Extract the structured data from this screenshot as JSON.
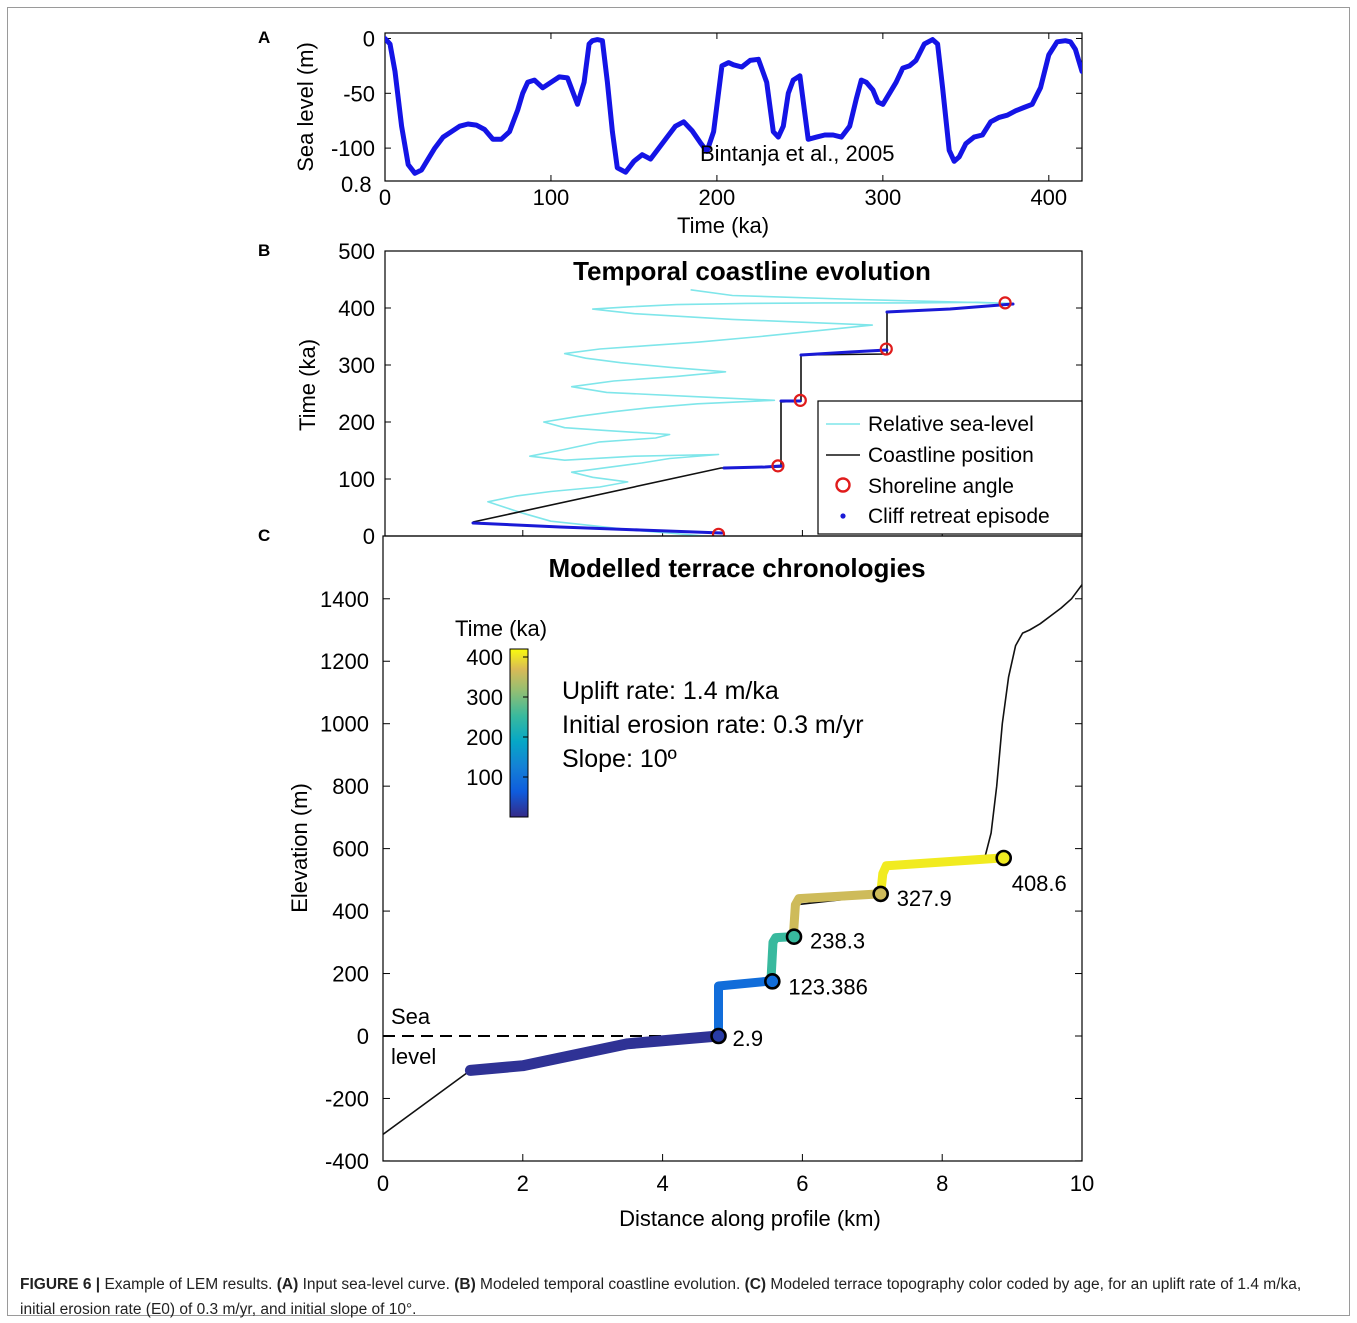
{
  "chart_data": [
    {
      "panel": "A",
      "type": "line",
      "xlabel": "Time (ka)",
      "ylabel": "Sea level (m)",
      "xlim": [
        0,
        420
      ],
      "ylim": [
        -130,
        5
      ],
      "xticks": [
        "0",
        "100",
        "200",
        "300",
        "400"
      ],
      "yticks": [
        "0",
        "-50",
        "-100"
      ],
      "corner_label": "0.8",
      "annotation": "Bintanja et al., 2005",
      "line_color": "#1414e6",
      "x": [
        0,
        3,
        6,
        10,
        14,
        18,
        22,
        26,
        30,
        35,
        40,
        45,
        50,
        55,
        60,
        65,
        70,
        75,
        80,
        83,
        86,
        90,
        95,
        100,
        105,
        110,
        113,
        116,
        120,
        123,
        125,
        128,
        131,
        134,
        137,
        140,
        145,
        150,
        155,
        160,
        165,
        170,
        175,
        180,
        185,
        190,
        194,
        198,
        203,
        207,
        210,
        215,
        220,
        225,
        230,
        234,
        237,
        240,
        243,
        246,
        250,
        255,
        260,
        265,
        270,
        275,
        280,
        284,
        287,
        290,
        294,
        297,
        300,
        304,
        308,
        312,
        316,
        320,
        325,
        330,
        333,
        336,
        340,
        343,
        346,
        350,
        355,
        360,
        365,
        370,
        375,
        380,
        385,
        390,
        395,
        400,
        405,
        410,
        413,
        416,
        420
      ],
      "y": [
        0,
        -5,
        -30,
        -80,
        -115,
        -123,
        -120,
        -110,
        -100,
        -90,
        -85,
        -80,
        -78,
        -79,
        -83,
        -92,
        -92,
        -85,
        -65,
        -50,
        -40,
        -38,
        -45,
        -40,
        -35,
        -36,
        -48,
        -60,
        -40,
        -5,
        -2,
        -1,
        -2,
        -40,
        -85,
        -118,
        -122,
        -112,
        -106,
        -110,
        -100,
        -90,
        -80,
        -76,
        -84,
        -95,
        -103,
        -85,
        -25,
        -22,
        -24,
        -26,
        -20,
        -19,
        -40,
        -85,
        -90,
        -80,
        -50,
        -38,
        -34,
        -92,
        -90,
        -88,
        -88,
        -90,
        -80,
        -55,
        -38,
        -40,
        -47,
        -58,
        -60,
        -50,
        -40,
        -27,
        -25,
        -20,
        -5,
        -1,
        -5,
        -45,
        -102,
        -112,
        -108,
        -96,
        -90,
        -88,
        -76,
        -72,
        -70,
        -66,
        -63,
        -60,
        -45,
        -15,
        -3,
        -2,
        -3,
        -10,
        -30
      ]
    },
    {
      "panel": "B",
      "type": "line",
      "title": "Temporal coastline evolution",
      "ylabel": "Time (ka)",
      "ylim": [
        0,
        500
      ],
      "yticks": [
        "0",
        "100",
        "200",
        "300",
        "400",
        "500"
      ],
      "legend": [
        "Relative sea-level",
        "Coastline position",
        "Shoreline angle",
        "Cliff retreat episode"
      ],
      "legend_position": "bottom-right",
      "colors": {
        "sea_level": "#7fe6ea",
        "coastline": "#111111",
        "shoreline": "#e01c1c",
        "cliff": "#1a1ad6"
      },
      "relative_sea_level": {
        "x": [
          4.6,
          4.1,
          3.6,
          3.0,
          2.4,
          2.0,
          1.5,
          1.9,
          2.4,
          3.1,
          3.5,
          3.0,
          2.7,
          3.2,
          3.7,
          4.1,
          4.8,
          3.6,
          2.6,
          2.1,
          2.6,
          3.1,
          3.9,
          4.1,
          3.2,
          2.6,
          2.3,
          2.8,
          3.3,
          3.8,
          4.5,
          5.6,
          4.4,
          3.2,
          2.7,
          3.3,
          4.2,
          4.9,
          4.1,
          3.4,
          2.9,
          2.6,
          3.1,
          3.8,
          4.5,
          5.4,
          6.2,
          7.0,
          5.0,
          3.6,
          3.0,
          3.5,
          4.2,
          5.2,
          6.3,
          7.5,
          8.5,
          9.0,
          6.8,
          5.0,
          4.4
        ],
        "y": [
          0,
          5,
          10,
          18,
          26,
          40,
          60,
          70,
          78,
          86,
          95,
          103,
          112,
          120,
          128,
          136,
          143,
          140,
          133,
          140,
          152,
          165,
          172,
          178,
          185,
          190,
          200,
          210,
          218,
          225,
          232,
          238,
          245,
          252,
          262,
          272,
          280,
          288,
          296,
          304,
          312,
          320,
          328,
          334,
          340,
          350,
          360,
          370,
          380,
          390,
          398,
          402,
          406,
          408,
          409,
          409,
          410,
          408,
          415,
          422,
          432
        ]
      },
      "shoreline_angles": [
        {
          "x": 4.8,
          "y": 3
        },
        {
          "x": 5.65,
          "y": 123
        },
        {
          "x": 5.97,
          "y": 238
        },
        {
          "x": 7.2,
          "y": 328
        },
        {
          "x": 8.9,
          "y": 409
        }
      ]
    },
    {
      "panel": "C",
      "type": "line",
      "title": "Modelled terrace chronologies",
      "xlabel": "Distance along profile (km)",
      "ylabel": "Elevation (m)",
      "xlim": [
        0,
        10
      ],
      "ylim": [
        -400,
        1500
      ],
      "xticks": [
        "0",
        "2",
        "4",
        "6",
        "8",
        "10"
      ],
      "yticks": [
        "-400",
        "-200",
        "0",
        "200",
        "400",
        "600",
        "800",
        "1000",
        "1200",
        "1400"
      ],
      "sea_level_label_1": "Sea",
      "sea_level_label_2": "level",
      "colorbar_label": "Time (ka)",
      "colorbar_ticks": [
        "400",
        "300",
        "200",
        "100"
      ],
      "colorbar_range": [
        0,
        420
      ],
      "info_lines": [
        "Uplift rate: 1.4 m/ka",
        "Initial erosion rate: 0.3 m/yr",
        "Slope: 10º"
      ],
      "profile": {
        "x": [
          0,
          1.25,
          1.25,
          2.0,
          3.5,
          4.8,
          4.8,
          5.55,
          5.55,
          5.62,
          5.62,
          5.9,
          5.9,
          7.1,
          7.1,
          7.15,
          7.15,
          8.6,
          8.62,
          8.7,
          8.78,
          8.86,
          8.95,
          9.05,
          9.15,
          9.25,
          9.4,
          9.55,
          9.7,
          9.85,
          10
        ],
        "y": [
          -315,
          -110,
          -110,
          -95,
          -25,
          5,
          160,
          170,
          175,
          300,
          310,
          320,
          420,
          450,
          460,
          520,
          545,
          570,
          580,
          650,
          800,
          1000,
          1150,
          1250,
          1290,
          1300,
          1320,
          1345,
          1370,
          1400,
          1445
        ]
      },
      "terraces": [
        {
          "label": "2.9",
          "age": 2.9,
          "x": [
            1.25,
            2.0,
            3.5,
            4.8
          ],
          "y": [
            -110,
            -95,
            -25,
            0
          ]
        },
        {
          "label": "123.386",
          "age": 123.386,
          "x": [
            4.8,
            4.8,
            5.5,
            5.55
          ],
          "y": [
            0,
            160,
            175,
            175
          ]
        },
        {
          "label": "238.3",
          "age": 238.3,
          "x": [
            5.55,
            5.58,
            5.62,
            5.85,
            5.87
          ],
          "y": [
            175,
            300,
            315,
            318,
            318
          ]
        },
        {
          "label": "327.9",
          "age": 327.9,
          "x": [
            5.87,
            5.9,
            5.95,
            7.1,
            7.12
          ],
          "y": [
            318,
            420,
            440,
            455,
            455
          ]
        },
        {
          "label": "408.6",
          "age": 408.6,
          "x": [
            7.12,
            7.15,
            7.2,
            8.85,
            8.88
          ],
          "y": [
            455,
            520,
            545,
            570,
            570
          ]
        }
      ],
      "shoreline_angles": [
        {
          "x": 4.8,
          "y": 0,
          "label": "2.9"
        },
        {
          "x": 5.57,
          "y": 175,
          "label": "123.386"
        },
        {
          "x": 5.88,
          "y": 318,
          "label": "238.3"
        },
        {
          "x": 7.12,
          "y": 455,
          "label": "327.9"
        },
        {
          "x": 8.88,
          "y": 570,
          "label": "408.6"
        }
      ]
    }
  ],
  "panel_labels": [
    "A",
    "B",
    "C"
  ],
  "caption": {
    "lead": "FIGURE 6 |",
    "t1": " Example of LEM results. ",
    "a": "(A)",
    "t2": " Input sea-level curve. ",
    "b": "(B)",
    "t3": " Modeled temporal coastline evolution. ",
    "c": "(C)",
    "t4": " Modeled terrace topography color coded by age, for an uplift rate of 1.4 m/ka, initial erosion rate (E0) of 0.3 m/yr, and initial slope of 10°."
  }
}
